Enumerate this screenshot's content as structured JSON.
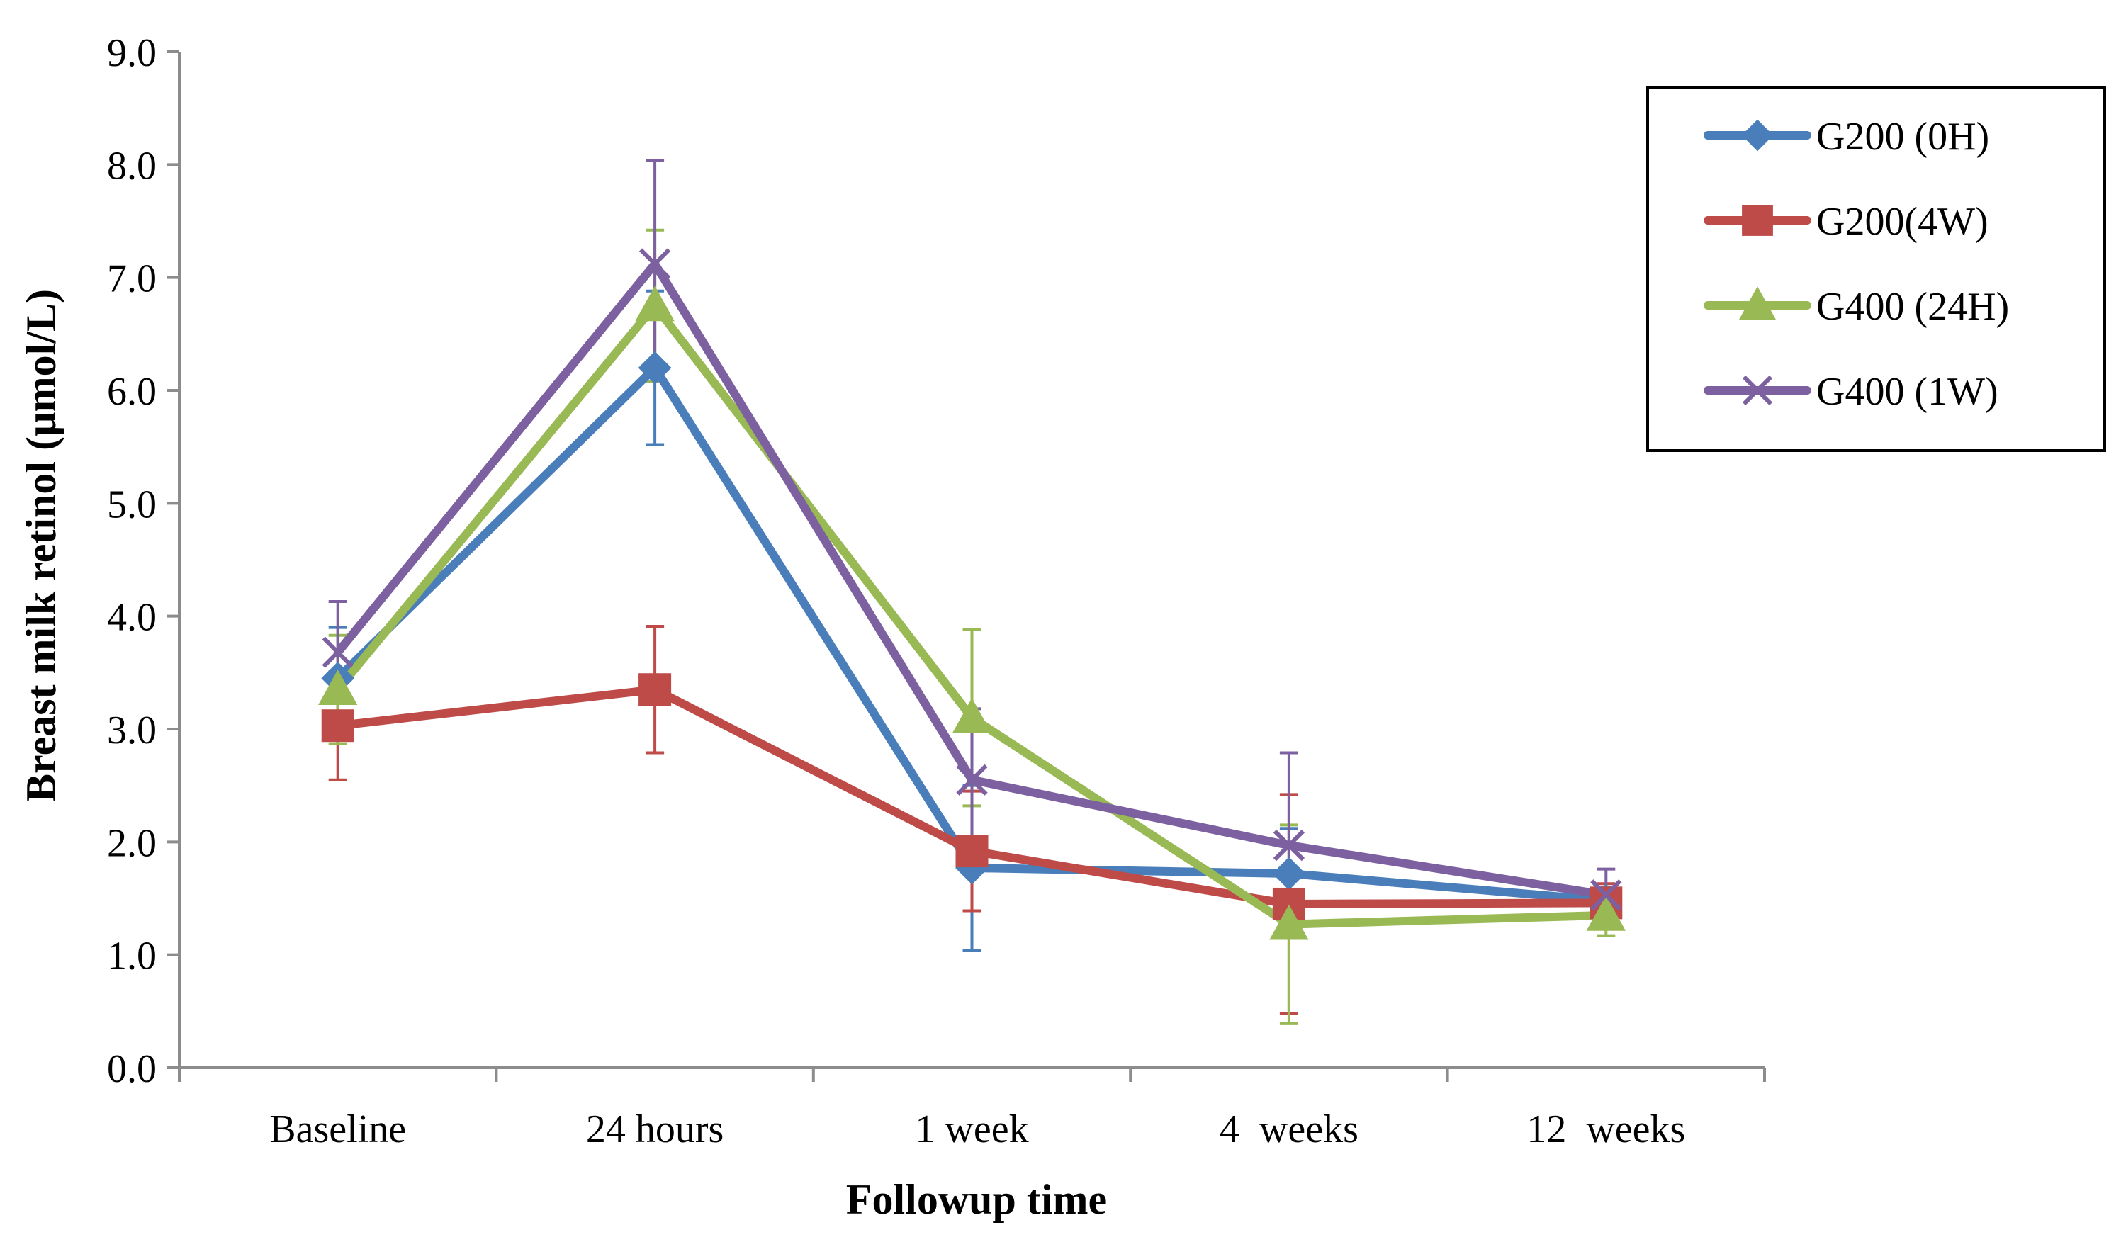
{
  "chart_data": {
    "type": "line",
    "title": "",
    "xlabel": "Followup time",
    "ylabel": "Breast milk retinol (µmol/L)",
    "ylim": [
      0,
      9
    ],
    "yticks": [
      "0.0",
      "1.0",
      "2.0",
      "3.0",
      "4.0",
      "5.0",
      "6.0",
      "7.0",
      "8.0",
      "9.0"
    ],
    "categories": [
      "Baseline",
      "24 hours",
      "1 week",
      "4  weeks",
      "12  weeks"
    ],
    "grid": false,
    "legend_position": "top-right",
    "error_bars": true,
    "series": [
      {
        "name": "G200 (0H)",
        "color": "#4a7ebb",
        "marker": "diamond",
        "values": [
          3.45,
          6.2,
          1.77,
          1.72,
          1.48
        ],
        "error": [
          0.45,
          0.68,
          0.73,
          0.4,
          0.12
        ]
      },
      {
        "name": "G200(4W)",
        "color": "#be4b48",
        "marker": "square",
        "values": [
          3.03,
          3.35,
          1.92,
          1.45,
          1.46
        ],
        "error": [
          0.48,
          0.56,
          0.53,
          0.97,
          0.17
        ]
      },
      {
        "name": "G400 (24H)",
        "color": "#98b954",
        "marker": "triangle",
        "values": [
          3.35,
          6.75,
          3.1,
          1.27,
          1.35
        ],
        "error": [
          0.48,
          0.67,
          0.78,
          0.88,
          0.18
        ]
      },
      {
        "name": "G400 (1W)",
        "color": "#7d60a0",
        "marker": "x",
        "values": [
          3.68,
          7.12,
          2.55,
          1.97,
          1.53
        ],
        "error": [
          0.45,
          0.92,
          0.63,
          0.82,
          0.23
        ]
      }
    ]
  }
}
